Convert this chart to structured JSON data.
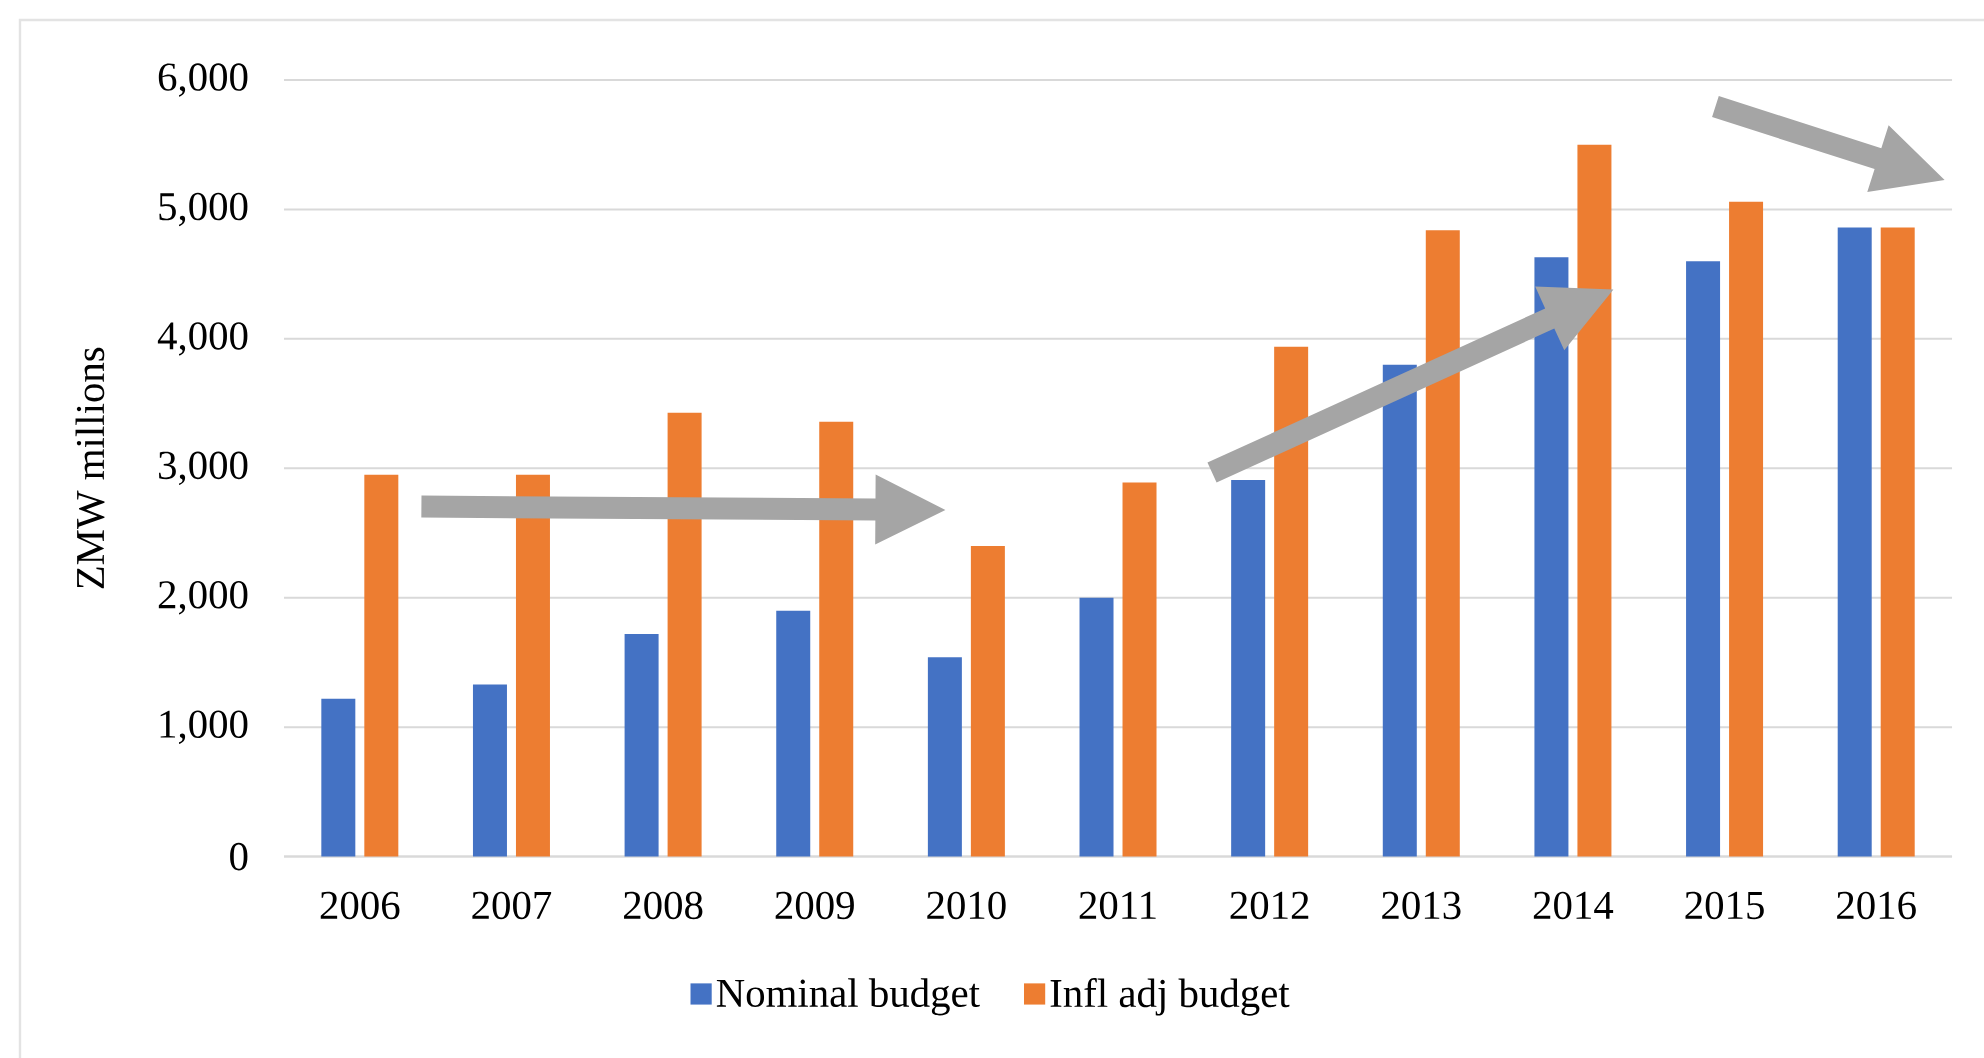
{
  "chart_data": {
    "type": "bar",
    "categories": [
      "2006",
      "2007",
      "2008",
      "2009",
      "2010",
      "2011",
      "2012",
      "2013",
      "2014",
      "2015",
      "2016"
    ],
    "ylabel": "ZMW millions",
    "series": [
      {
        "name": "Nominal budget",
        "color": "#4472c4",
        "values": [
          1220,
          1330,
          1720,
          1900,
          1540,
          2000,
          2910,
          3800,
          4630,
          4600,
          4860
        ]
      },
      {
        "name": "Infl adj budget",
        "color": "#ed7d31",
        "values": [
          2950,
          2950,
          3430,
          3360,
          2400,
          2890,
          3940,
          4840,
          5500,
          5060,
          4860
        ]
      }
    ],
    "ylim": [
      0,
      6000
    ],
    "yticks": [
      0,
      {
        "value": 1000,
        "label": "1,000"
      },
      {
        "value": 2000,
        "label": "2,000"
      },
      {
        "value": 3000,
        "label": "3,000"
      },
      {
        "value": 4000,
        "label": "4,000"
      },
      {
        "value": 5000,
        "label": "5,000"
      },
      {
        "value": 6000,
        "label": "6,000"
      }
    ],
    "grid": "y",
    "legend": "bottom"
  }
}
